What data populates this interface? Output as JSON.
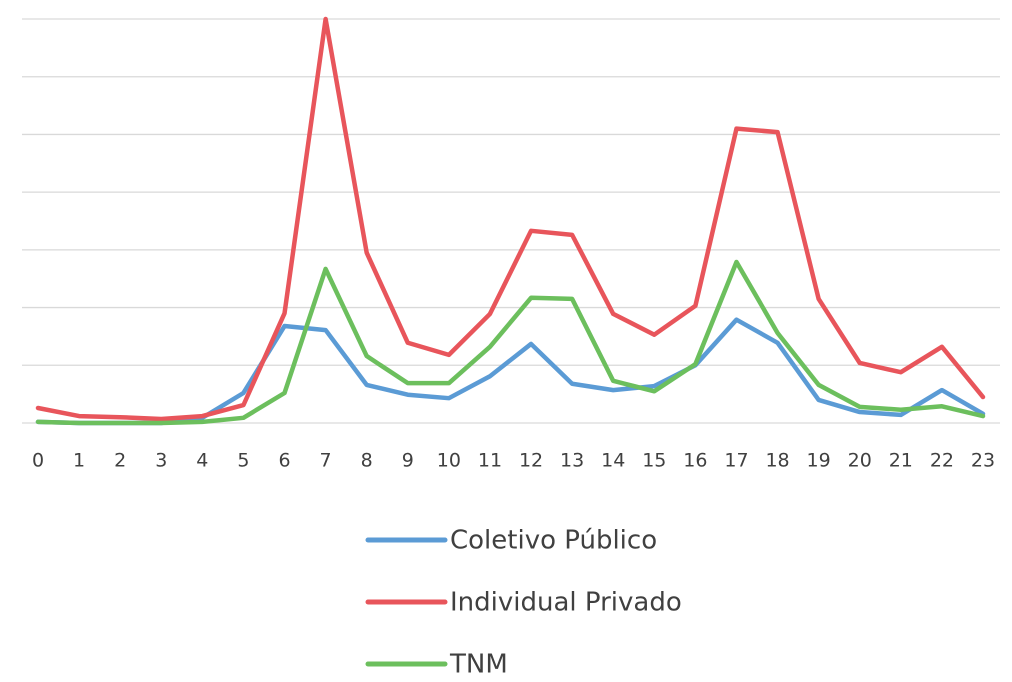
{
  "chart_data": {
    "type": "line",
    "categories": [
      "0",
      "1",
      "2",
      "3",
      "4",
      "5",
      "6",
      "7",
      "8",
      "9",
      "10",
      "11",
      "12",
      "13",
      "14",
      "15",
      "16",
      "17",
      "18",
      "19",
      "20",
      "21",
      "22",
      "23"
    ],
    "series": [
      {
        "name": "Coletivo Público",
        "color": "#5b9bd5",
        "values": [
          0.02,
          0,
          0,
          0,
          0.09,
          0.52,
          1.68,
          1.61,
          0.66,
          0.49,
          0.43,
          0.81,
          1.37,
          0.68,
          0.57,
          0.64,
          1.0,
          1.79,
          1.39,
          0.4,
          0.19,
          0.14,
          0.57,
          0.16
        ]
      },
      {
        "name": "Individual Privado",
        "color": "#e8555b",
        "values": [
          0.26,
          0.12,
          0.1,
          0.07,
          0.12,
          0.31,
          1.9,
          7.0,
          2.95,
          1.39,
          1.18,
          1.89,
          3.33,
          3.26,
          1.89,
          1.53,
          2.03,
          5.1,
          5.04,
          2.15,
          1.04,
          0.88,
          1.32,
          0.45
        ]
      },
      {
        "name": "TNM",
        "color": "#6cbf5d",
        "values": [
          0.02,
          0,
          0,
          0,
          0.02,
          0.09,
          0.52,
          2.67,
          1.16,
          0.69,
          0.69,
          1.32,
          2.17,
          2.15,
          0.73,
          0.55,
          1.02,
          2.79,
          1.56,
          0.66,
          0.28,
          0.23,
          0.29,
          0.12
        ]
      }
    ],
    "ylim": [
      0,
      7
    ],
    "yticks": [
      0,
      1,
      2,
      3,
      4,
      5,
      6,
      7
    ],
    "grid": true,
    "legend": "bottom"
  }
}
